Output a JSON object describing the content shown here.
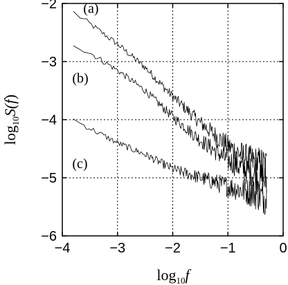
{
  "chart_data": {
    "type": "line",
    "title": "",
    "xlabel": {
      "base": "log",
      "sub": "10",
      "var": "f"
    },
    "ylabel": {
      "base": "log",
      "sub": "10",
      "func": "S(",
      "var": "f",
      "close": ")"
    },
    "xlim": [
      -4,
      0
    ],
    "ylim": [
      -6,
      -2
    ],
    "xticks": [
      -4,
      -3,
      -2,
      -1,
      0
    ],
    "yticks": [
      -6,
      -5,
      -4,
      -3,
      -2
    ],
    "xtick_labels": [
      "−4",
      "−3",
      "−2",
      "−1",
      "0"
    ],
    "ytick_labels": [
      "−6",
      "−5",
      "−4",
      "−3",
      "−2"
    ],
    "grid": true,
    "series": [
      {
        "name": "(a)",
        "x_range": [
          -3.8,
          -0.3
        ],
        "knots": [
          [
            -3.8,
            -2.15
          ],
          [
            -3.5,
            -2.35
          ],
          [
            -3.0,
            -2.7
          ],
          [
            -2.5,
            -3.1
          ],
          [
            -2.0,
            -3.6
          ],
          [
            -1.5,
            -4.05
          ],
          [
            -1.0,
            -4.45
          ],
          [
            -0.6,
            -4.7
          ],
          [
            -0.3,
            -4.8
          ]
        ],
        "noise_base": 0.05,
        "noise_growth": 0.28
      },
      {
        "name": "(b)",
        "x_range": [
          -3.8,
          -0.3
        ],
        "knots": [
          [
            -3.8,
            -2.7
          ],
          [
            -3.5,
            -2.85
          ],
          [
            -3.0,
            -3.15
          ],
          [
            -2.5,
            -3.5
          ],
          [
            -2.0,
            -3.95
          ],
          [
            -1.5,
            -4.35
          ],
          [
            -1.0,
            -4.7
          ],
          [
            -0.6,
            -4.9
          ],
          [
            -0.3,
            -5.05
          ]
        ],
        "noise_base": 0.05,
        "noise_growth": 0.28
      },
      {
        "name": "(c)",
        "x_range": [
          -3.8,
          -0.3
        ],
        "knots": [
          [
            -3.8,
            -4.0
          ],
          [
            -3.5,
            -4.15
          ],
          [
            -3.0,
            -4.4
          ],
          [
            -2.5,
            -4.6
          ],
          [
            -2.0,
            -4.85
          ],
          [
            -1.5,
            -5.0
          ],
          [
            -1.0,
            -5.15
          ],
          [
            -0.6,
            -5.25
          ],
          [
            -0.3,
            -5.35
          ]
        ],
        "noise_base": 0.05,
        "noise_growth": 0.26
      }
    ]
  }
}
